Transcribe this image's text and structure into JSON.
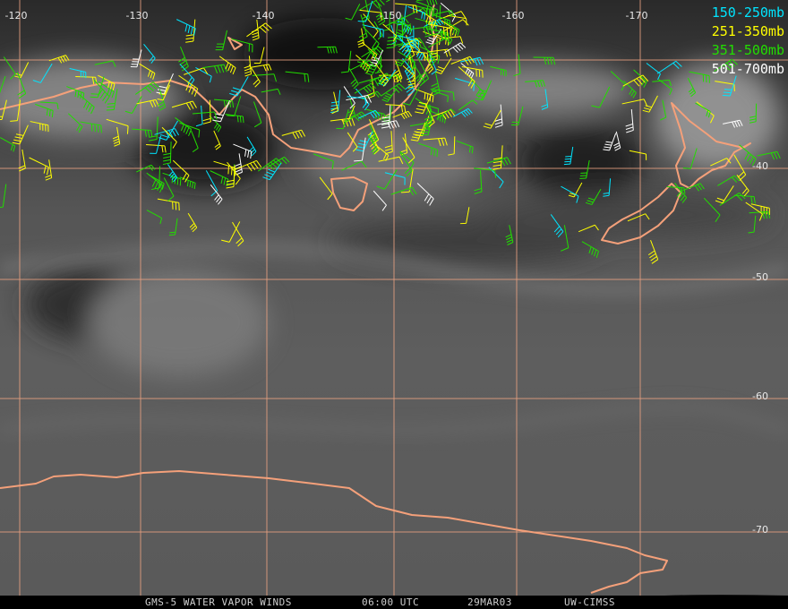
{
  "map": {
    "longitude_labels": [
      "-120",
      "-130",
      "-140",
      "-150",
      "-160",
      "-170"
    ],
    "latitude_labels": [
      "-40",
      "-50",
      "-60",
      "-70"
    ]
  },
  "legend": [
    {
      "label": "150-250mb",
      "color": "#00e5ff"
    },
    {
      "label": "251-350mb",
      "color": "#ffff00"
    },
    {
      "label": "351-500mb",
      "color": "#22dd00"
    },
    {
      "label": "501-700mb",
      "color": "#ffffff"
    }
  ],
  "footer": {
    "satellite": "GMS-5 WATER VAPOR WINDS",
    "time": "06:00 UTC",
    "date": "29MAR03",
    "source": "UW-CIMSS"
  }
}
